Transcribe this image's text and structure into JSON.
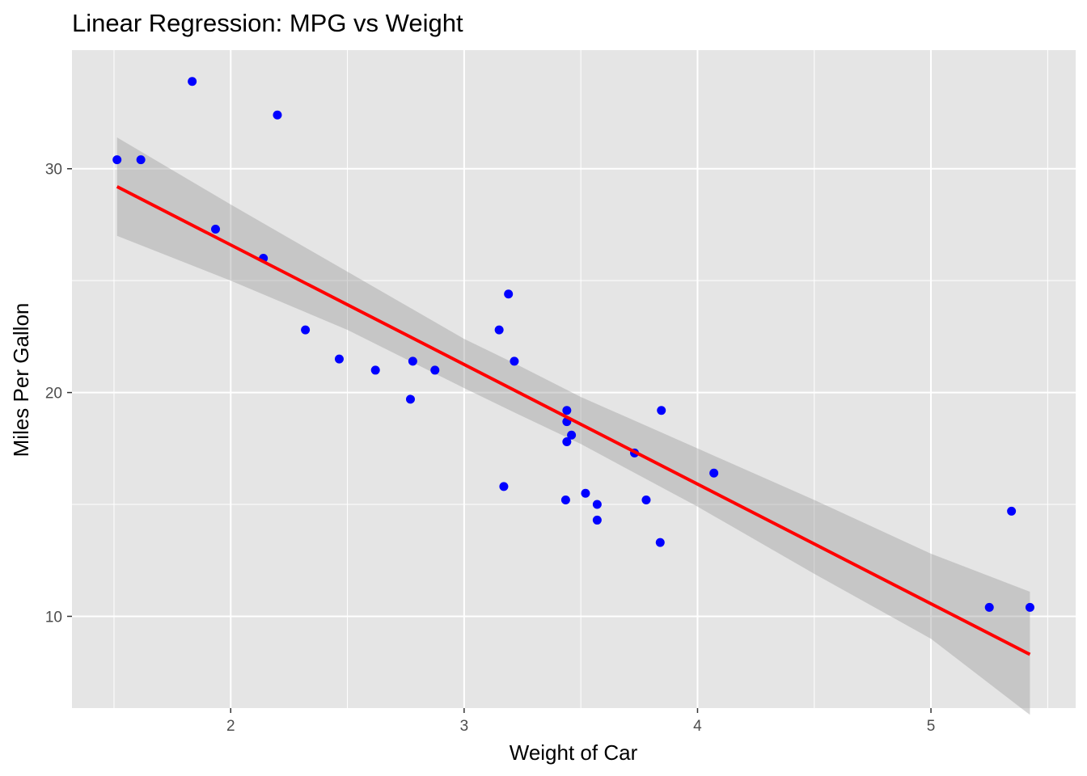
{
  "chart_data": {
    "type": "scatter",
    "title": "Linear Regression: MPG vs Weight",
    "xlabel": "Weight of Car",
    "ylabel": "Miles Per Gallon",
    "xlim": [
      1.32,
      5.62
    ],
    "ylim": [
      5.9,
      35.3
    ],
    "x_ticks": [
      2,
      3,
      4,
      5
    ],
    "x_tick_labels": [
      "2",
      "3",
      "4",
      "5"
    ],
    "y_ticks": [
      10,
      20,
      30
    ],
    "y_tick_labels": [
      "10",
      "20",
      "30"
    ],
    "x_minor_ticks": [
      1.5,
      2.5,
      3.5,
      4.5,
      5.5
    ],
    "y_minor_ticks": [
      15,
      25
    ],
    "grid": true,
    "points": [
      {
        "x": 2.62,
        "y": 21.0
      },
      {
        "x": 2.875,
        "y": 21.0
      },
      {
        "x": 2.32,
        "y": 22.8
      },
      {
        "x": 3.215,
        "y": 21.4
      },
      {
        "x": 3.44,
        "y": 18.7
      },
      {
        "x": 3.46,
        "y": 18.1
      },
      {
        "x": 3.57,
        "y": 14.3
      },
      {
        "x": 3.19,
        "y": 24.4
      },
      {
        "x": 3.15,
        "y": 22.8
      },
      {
        "x": 3.44,
        "y": 19.2
      },
      {
        "x": 3.44,
        "y": 17.8
      },
      {
        "x": 4.07,
        "y": 16.4
      },
      {
        "x": 3.73,
        "y": 17.3
      },
      {
        "x": 3.78,
        "y": 15.2
      },
      {
        "x": 5.25,
        "y": 10.4
      },
      {
        "x": 5.424,
        "y": 10.4
      },
      {
        "x": 5.345,
        "y": 14.7
      },
      {
        "x": 2.2,
        "y": 32.4
      },
      {
        "x": 1.615,
        "y": 30.4
      },
      {
        "x": 1.835,
        "y": 33.9
      },
      {
        "x": 2.465,
        "y": 21.5
      },
      {
        "x": 3.52,
        "y": 15.5
      },
      {
        "x": 3.435,
        "y": 15.2
      },
      {
        "x": 3.84,
        "y": 13.3
      },
      {
        "x": 3.845,
        "y": 19.2
      },
      {
        "x": 1.935,
        "y": 27.3
      },
      {
        "x": 2.14,
        "y": 26.0
      },
      {
        "x": 1.513,
        "y": 30.4
      },
      {
        "x": 3.17,
        "y": 15.8
      },
      {
        "x": 2.77,
        "y": 19.7
      },
      {
        "x": 3.57,
        "y": 15.0
      },
      {
        "x": 2.78,
        "y": 21.4
      }
    ],
    "regression": {
      "intercept": 37.285,
      "slope": -5.344,
      "x_range": [
        1.513,
        5.424
      ],
      "confidence_band": [
        {
          "x": 1.513,
          "lower": 27.0,
          "upper": 31.4
        },
        {
          "x": 2.0,
          "lower": 25.0,
          "upper": 28.4
        },
        {
          "x": 2.5,
          "lower": 22.8,
          "upper": 25.4
        },
        {
          "x": 3.0,
          "lower": 20.2,
          "upper": 22.4
        },
        {
          "x": 3.217,
          "lower": 19.1,
          "upper": 21.3
        },
        {
          "x": 3.5,
          "lower": 17.7,
          "upper": 19.8
        },
        {
          "x": 4.0,
          "lower": 14.9,
          "upper": 17.5
        },
        {
          "x": 4.5,
          "lower": 11.9,
          "upper": 15.2
        },
        {
          "x": 5.0,
          "lower": 9.0,
          "upper": 12.8
        },
        {
          "x": 5.424,
          "lower": 5.6,
          "upper": 11.1
        }
      ],
      "line_color": "#ff0000",
      "band_color": "#999999"
    },
    "point_color": "#0000ff",
    "panel_background": "#e5e5e5",
    "grid_color": "#ffffff"
  }
}
